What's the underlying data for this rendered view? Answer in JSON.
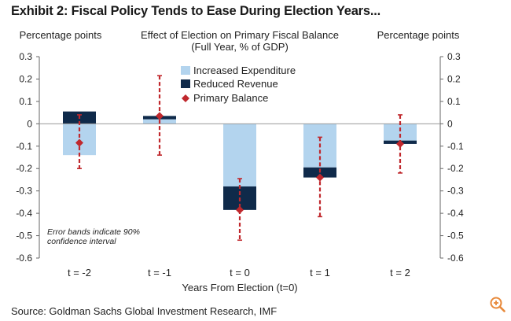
{
  "title": "Exhibit 2: Fiscal Policy Tends to Ease During Election Years...",
  "source": "Source: Goldman Sachs Global Investment Research, IMF",
  "chart_data": {
    "type": "bar",
    "title": "Effect of Election on Primary Fiscal Balance",
    "subtitle": "(Full Year, % of GDP)",
    "ylabel_left": "Percentage points",
    "ylabel_right": "Percentage points",
    "xlabel": "Years From Election (t=0)",
    "categories": [
      "t = -2",
      "t = -1",
      "t = 0",
      "t = 1",
      "t = 2"
    ],
    "ylim": [
      -0.6,
      0.3
    ],
    "yticks": [
      0.3,
      0.2,
      0.1,
      0,
      -0.1,
      -0.2,
      -0.3,
      -0.4,
      -0.5,
      -0.6
    ],
    "ytick_labels": [
      "0.3",
      "0.2",
      "0.1",
      "0",
      "-0.1",
      "-0.2",
      "-0.3",
      "-0.4",
      "-0.5",
      "-0.6"
    ],
    "series": [
      {
        "name": "Increased Expenditure",
        "kind": "bar",
        "color": "#b3d4ee",
        "values": [
          -0.14,
          0.02,
          -0.28,
          -0.195,
          -0.075
        ]
      },
      {
        "name": "Reduced Revenue",
        "kind": "bar",
        "color": "#0f2a4a",
        "values": [
          0.055,
          0.015,
          -0.105,
          -0.045,
          -0.015
        ]
      },
      {
        "name": "Primary Balance",
        "kind": "marker",
        "color": "#c0282d",
        "values": [
          -0.085,
          0.035,
          -0.385,
          -0.24,
          -0.09
        ]
      }
    ],
    "error_bars": {
      "low": [
        -0.2,
        -0.14,
        -0.52,
        -0.415,
        -0.22
      ],
      "high": [
        0.04,
        0.215,
        -0.245,
        -0.06,
        0.04
      ]
    },
    "annotation": [
      "Error bands indicate 90%",
      "confidence interval"
    ],
    "legend_position": "top-center"
  },
  "colors": {
    "axis": "#666666",
    "zero_line": "#999999",
    "error_bar": "#c0282d"
  }
}
